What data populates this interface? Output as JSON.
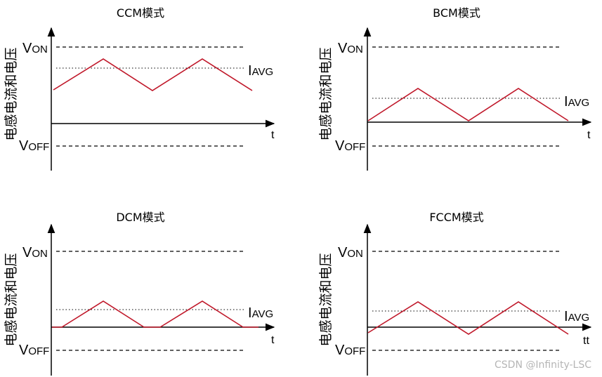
{
  "watermark": "CSDN @Infinity-LSC",
  "colors": {
    "waveform": "#c0182a",
    "axes": "#000000",
    "watermark": "#b5b5b5"
  },
  "panels": [
    {
      "title": "CCM模式",
      "y_axis_label": "电感电流和电压",
      "von_label": {
        "main": "V",
        "sub": "ON"
      },
      "voff_label": {
        "main": "V",
        "sub": "OFF"
      },
      "iavg_label": {
        "main": "I",
        "sub": "AVG"
      },
      "t_label": "t"
    },
    {
      "title": "BCM模式",
      "y_axis_label": "电感电流和电压",
      "von_label": {
        "main": "V",
        "sub": "ON"
      },
      "voff_label": {
        "main": "V",
        "sub": "OFF"
      },
      "iavg_label": {
        "main": "I",
        "sub": "AVG"
      },
      "t_label": "t"
    },
    {
      "title": "DCM模式",
      "y_axis_label": "电感电流和电压",
      "von_label": {
        "main": "V",
        "sub": "ON"
      },
      "voff_label": {
        "main": "V",
        "sub": "OFF"
      },
      "iavg_label": {
        "main": "I",
        "sub": "AVG"
      },
      "t_label": "t"
    },
    {
      "title": "FCCM模式",
      "y_axis_label": "电感电流和电压",
      "von_label": {
        "main": "V",
        "sub": "ON"
      },
      "voff_label": {
        "main": "V",
        "sub": "OFF"
      },
      "iavg_label": {
        "main": "I",
        "sub": "AVG"
      },
      "t_label": "tt"
    }
  ]
}
